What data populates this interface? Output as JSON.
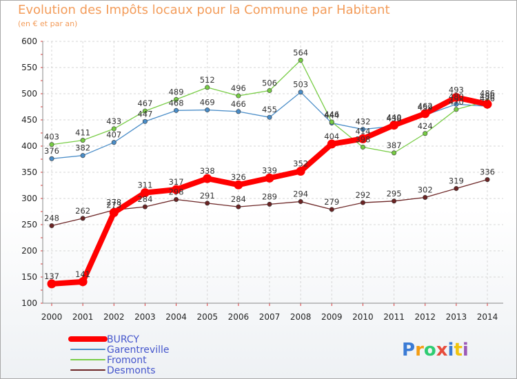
{
  "title": "Evolution des Impôts locaux pour la Commune par Habitant",
  "subtitle": "(en € et par an)",
  "logo": "Proxiti",
  "chart_data": {
    "type": "line",
    "title": "Evolution des Impôts locaux pour la Commune par Habitant",
    "subtitle": "(en € et par an)",
    "x": [
      2000,
      2001,
      2002,
      2003,
      2004,
      2005,
      2006,
      2007,
      2008,
      2009,
      2010,
      2011,
      2012,
      2013,
      2014
    ],
    "ylim": [
      100,
      600
    ],
    "yticks": [
      100,
      150,
      200,
      250,
      300,
      350,
      400,
      450,
      500,
      550,
      600
    ],
    "grid": true,
    "legend": "bottom-left",
    "series": [
      {
        "name": "BURCY",
        "color": "#ff0000",
        "values": [
          137,
          141,
          273,
          311,
          317,
          338,
          326,
          339,
          352,
          404,
          414,
          440,
          462,
          493,
          480
        ]
      },
      {
        "name": "Garentreville",
        "color": "#4a8dc8",
        "values": [
          376,
          382,
          407,
          447,
          468,
          469,
          466,
          455,
          503,
          444,
          432,
          438,
          459,
          480,
          476
        ]
      },
      {
        "name": "Fromont",
        "color": "#77cc44",
        "values": [
          403,
          411,
          433,
          467,
          489,
          512,
          496,
          506,
          564,
          446,
          398,
          387,
          424,
          470,
          486
        ]
      },
      {
        "name": "Desmonts",
        "color": "#6b2424",
        "values": [
          248,
          262,
          278,
          284,
          298,
          291,
          284,
          289,
          294,
          279,
          292,
          295,
          302,
          319,
          336
        ]
      }
    ],
    "data_labels": [
      [
        "137",
        "141",
        "273",
        "311",
        "317",
        "338",
        "326",
        "339",
        "352",
        "404",
        "414",
        "440",
        "462",
        "493",
        "480"
      ],
      [
        "376",
        "382",
        "407",
        "447",
        "468",
        "469",
        "466",
        "455",
        "503",
        "444",
        "432",
        "438",
        "459",
        "480",
        "476"
      ],
      [
        "403",
        "411",
        "433",
        "467",
        "489",
        "512",
        "496",
        "506",
        "564",
        "446",
        "398",
        "387",
        "424",
        "470",
        "486"
      ],
      [
        "248",
        "262",
        "278",
        "284",
        "298",
        "291",
        "284",
        "289",
        "294",
        "279",
        "292",
        "295",
        "302",
        "319",
        "336"
      ]
    ]
  }
}
